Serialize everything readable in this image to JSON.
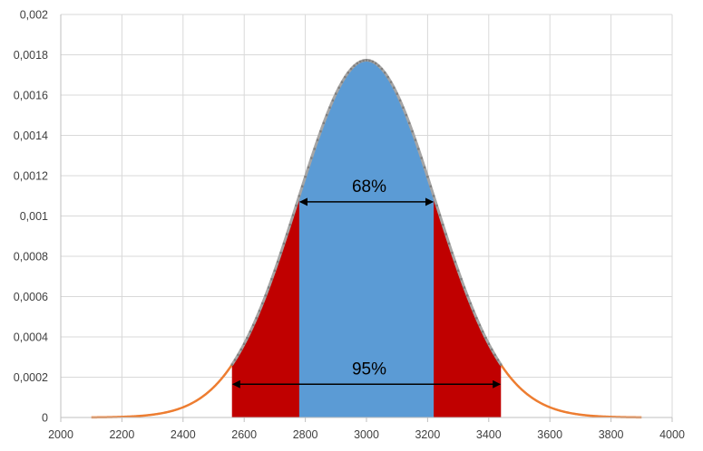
{
  "chart_data": {
    "type": "area",
    "title": "",
    "xlabel": "",
    "ylabel": "",
    "xlim": [
      2000,
      4000
    ],
    "ylim": [
      0,
      0.002
    ],
    "grid": true,
    "x_ticks": [
      2000,
      2200,
      2400,
      2600,
      2800,
      3000,
      3200,
      3400,
      3600,
      3800,
      4000
    ],
    "x_tick_labels": [
      "2000",
      "2200",
      "2400",
      "2600",
      "2800",
      "3000",
      "3200",
      "3400",
      "3600",
      "3800",
      "4000"
    ],
    "y_ticks": [
      0,
      0.0002,
      0.0004,
      0.0006,
      0.0008,
      0.001,
      0.0012,
      0.0014,
      0.0016,
      0.0018,
      0.002
    ],
    "y_tick_labels": [
      "0",
      "0,0002",
      "0,0004",
      "0,0006",
      "0,0008",
      "0,001",
      "0,0012",
      "0,0014",
      "0,0016",
      "0,0018",
      "0,002"
    ],
    "distribution": {
      "name": "normal",
      "mean": 3000,
      "sd": 225,
      "x_start": 2100,
      "x_end": 3900,
      "x_step": 10
    },
    "series": [
      {
        "name": "curve",
        "kind": "line",
        "x_range": [
          2100,
          3900
        ],
        "color": "#ED7D31"
      },
      {
        "name": "tails",
        "kind": "area",
        "x_range": [
          2560,
          3440
        ],
        "color": "#C00000"
      },
      {
        "name": "center",
        "kind": "area",
        "x_range": [
          2780,
          3220
        ],
        "color": "#5B9BD5"
      }
    ],
    "annotations": [
      {
        "text": "68%",
        "from_x": 2780,
        "to_x": 3220,
        "y": 0.00107
      },
      {
        "text": "95%",
        "from_x": 2560,
        "to_x": 3440,
        "y": 0.000165
      }
    ],
    "colors": {
      "grid": "#D9D9D9",
      "axis": "#BFBFBF",
      "marker_line": "#A5A5A5",
      "marker": "#7F7F7F",
      "arrow": "#000000"
    }
  }
}
